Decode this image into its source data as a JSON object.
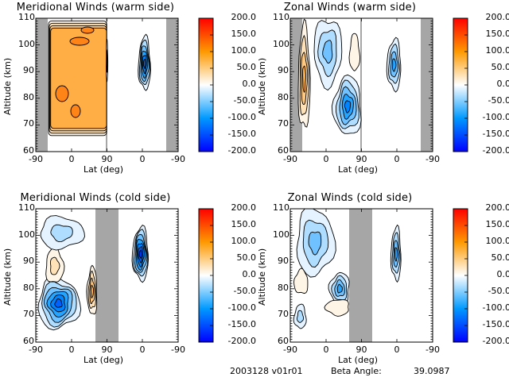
{
  "footer": {
    "date_version": "2003128 v01r01",
    "beta_label": "Beta Angle:",
    "beta_value": "39.0987"
  },
  "colorbar": {
    "ticks": [
      "200.0",
      "150.0",
      "100.0",
      "50.0",
      "0.0",
      "-50.0",
      "-100.0",
      "-150.0",
      "-200.0"
    ],
    "range": [
      -200,
      200
    ],
    "colors": {
      "max": "#ff0000",
      "high": "#ff9900",
      "mid": "#ffffff",
      "low": "#0099ff",
      "min": "#0000ff"
    }
  },
  "axes": {
    "ylabel": "Altitude (km)",
    "xlabel": "Lat (deg)",
    "yticks": [
      "110",
      "100",
      "90",
      "80",
      "70",
      "60"
    ],
    "xticks": [
      "-90",
      "0",
      "90",
      "0",
      "-90"
    ]
  },
  "chart_data": [
    {
      "type": "heatmap",
      "title": "Meridional Winds (warm side)",
      "xlabel": "Lat (deg)",
      "ylabel": "Altitude (km)",
      "ylim": [
        60,
        110
      ],
      "xticks": [
        "-90",
        "0",
        "90",
        "0",
        "-90"
      ],
      "colorbar_range": [
        -200,
        200
      ],
      "contour_interval": 25,
      "regions": [
        {
          "name": "broad-southward-flow",
          "lat_range": [
            -70,
            90
          ],
          "alt_range": [
            66,
            109
          ],
          "peak_value": 125
        },
        {
          "name": "edge-jet-90",
          "lat_range": [
            88,
            92
          ],
          "alt_range": [
            86,
            102
          ],
          "peak_value": -50
        },
        {
          "name": "opposite-side-core",
          "lat_range": [
            -20,
            10
          ],
          "alt_range": [
            83,
            103
          ],
          "peak_value": -150
        }
      ],
      "no_data_bands": [
        [
          -90,
          -70
        ],
        [
          -70,
          -90
        ]
      ]
    },
    {
      "type": "heatmap",
      "title": "Zonal Winds (warm side)",
      "xlabel": "Lat (deg)",
      "ylabel": "Altitude (km)",
      "ylim": [
        60,
        110
      ],
      "xticks": [
        "-90",
        "0",
        "90",
        "0",
        "-90"
      ],
      "colorbar_range": [
        -200,
        200
      ],
      "contour_interval": 25,
      "regions": [
        {
          "name": "eastward-jet-south",
          "lat_range": [
            -70,
            -40
          ],
          "alt_range": [
            68,
            107
          ],
          "peak_value": 100
        },
        {
          "name": "westward-upper",
          "lat_range": [
            -30,
            40
          ],
          "alt_range": [
            85,
            110
          ],
          "peak_value": -75
        },
        {
          "name": "westward-lower-core",
          "lat_range": [
            20,
            90
          ],
          "alt_range": [
            66,
            88
          ],
          "peak_value": -125
        },
        {
          "name": "small-positive-upper",
          "lat_range": [
            60,
            85
          ],
          "alt_range": [
            90,
            104
          ],
          "peak_value": 25
        },
        {
          "name": "opposite-side-core",
          "lat_range": [
            -10,
            25
          ],
          "alt_range": [
            83,
            102
          ],
          "peak_value": -100
        }
      ],
      "no_data_bands": [
        [
          -90,
          -70
        ],
        [
          -70,
          -90
        ]
      ]
    },
    {
      "type": "heatmap",
      "title": "Meridional Winds (cold side)",
      "xlabel": "Lat (deg)",
      "ylabel": "Altitude (km)",
      "ylim": [
        60,
        110
      ],
      "xticks": [
        "-90",
        "0",
        "90",
        "0",
        "-90"
      ],
      "colorbar_range": [
        -200,
        200
      ],
      "contour_interval": 25,
      "regions": [
        {
          "name": "strong-northward-core",
          "lat_range": [
            -85,
            20
          ],
          "alt_range": [
            65,
            84
          ],
          "peak_value": -150
        },
        {
          "name": "positive-cell-mid",
          "lat_range": [
            -65,
            -20
          ],
          "alt_range": [
            82,
            95
          ],
          "peak_value": 50
        },
        {
          "name": "positive-cell-edge",
          "lat_range": [
            40,
            65
          ],
          "alt_range": [
            70,
            88
          ],
          "peak_value": 100
        },
        {
          "name": "upper-cells",
          "lat_range": [
            -80,
            30
          ],
          "alt_range": [
            95,
            107
          ],
          "peak_value": -50
        },
        {
          "name": "opposite-side-core",
          "lat_range": [
            -15,
            25
          ],
          "alt_range": [
            83,
            103
          ],
          "peak_value": -175
        }
      ],
      "no_data_bands": [
        [
          65,
          125
        ]
      ]
    },
    {
      "type": "heatmap",
      "title": "Zonal Winds (cold side)",
      "xlabel": "Lat (deg)",
      "ylabel": "Altitude (km)",
      "ylim": [
        60,
        110
      ],
      "xticks": [
        "-90",
        "0",
        "90",
        "0",
        "-90"
      ],
      "colorbar_range": [
        -200,
        200
      ],
      "contour_interval": 25,
      "regions": [
        {
          "name": "westward-upper-band",
          "lat_range": [
            -75,
            20
          ],
          "alt_range": [
            85,
            110
          ],
          "peak_value": -75
        },
        {
          "name": "westward-lower-core",
          "lat_range": [
            10,
            60
          ],
          "alt_range": [
            74,
            86
          ],
          "peak_value": -100
        },
        {
          "name": "positive-cell-left",
          "lat_range": [
            -80,
            -45
          ],
          "alt_range": [
            78,
            87
          ],
          "peak_value": 25
        },
        {
          "name": "positive-cells-low",
          "lat_range": [
            0,
            60
          ],
          "alt_range": [
            70,
            76
          ],
          "peak_value": 25
        },
        {
          "name": "westward-low-left",
          "lat_range": [
            -80,
            -50
          ],
          "alt_range": [
            65,
            74
          ],
          "peak_value": -50
        },
        {
          "name": "opposite-side-core",
          "lat_range": [
            -10,
            15
          ],
          "alt_range": [
            83,
            103
          ],
          "peak_value": -100
        }
      ],
      "no_data_bands": [
        [
          65,
          125
        ]
      ]
    }
  ]
}
